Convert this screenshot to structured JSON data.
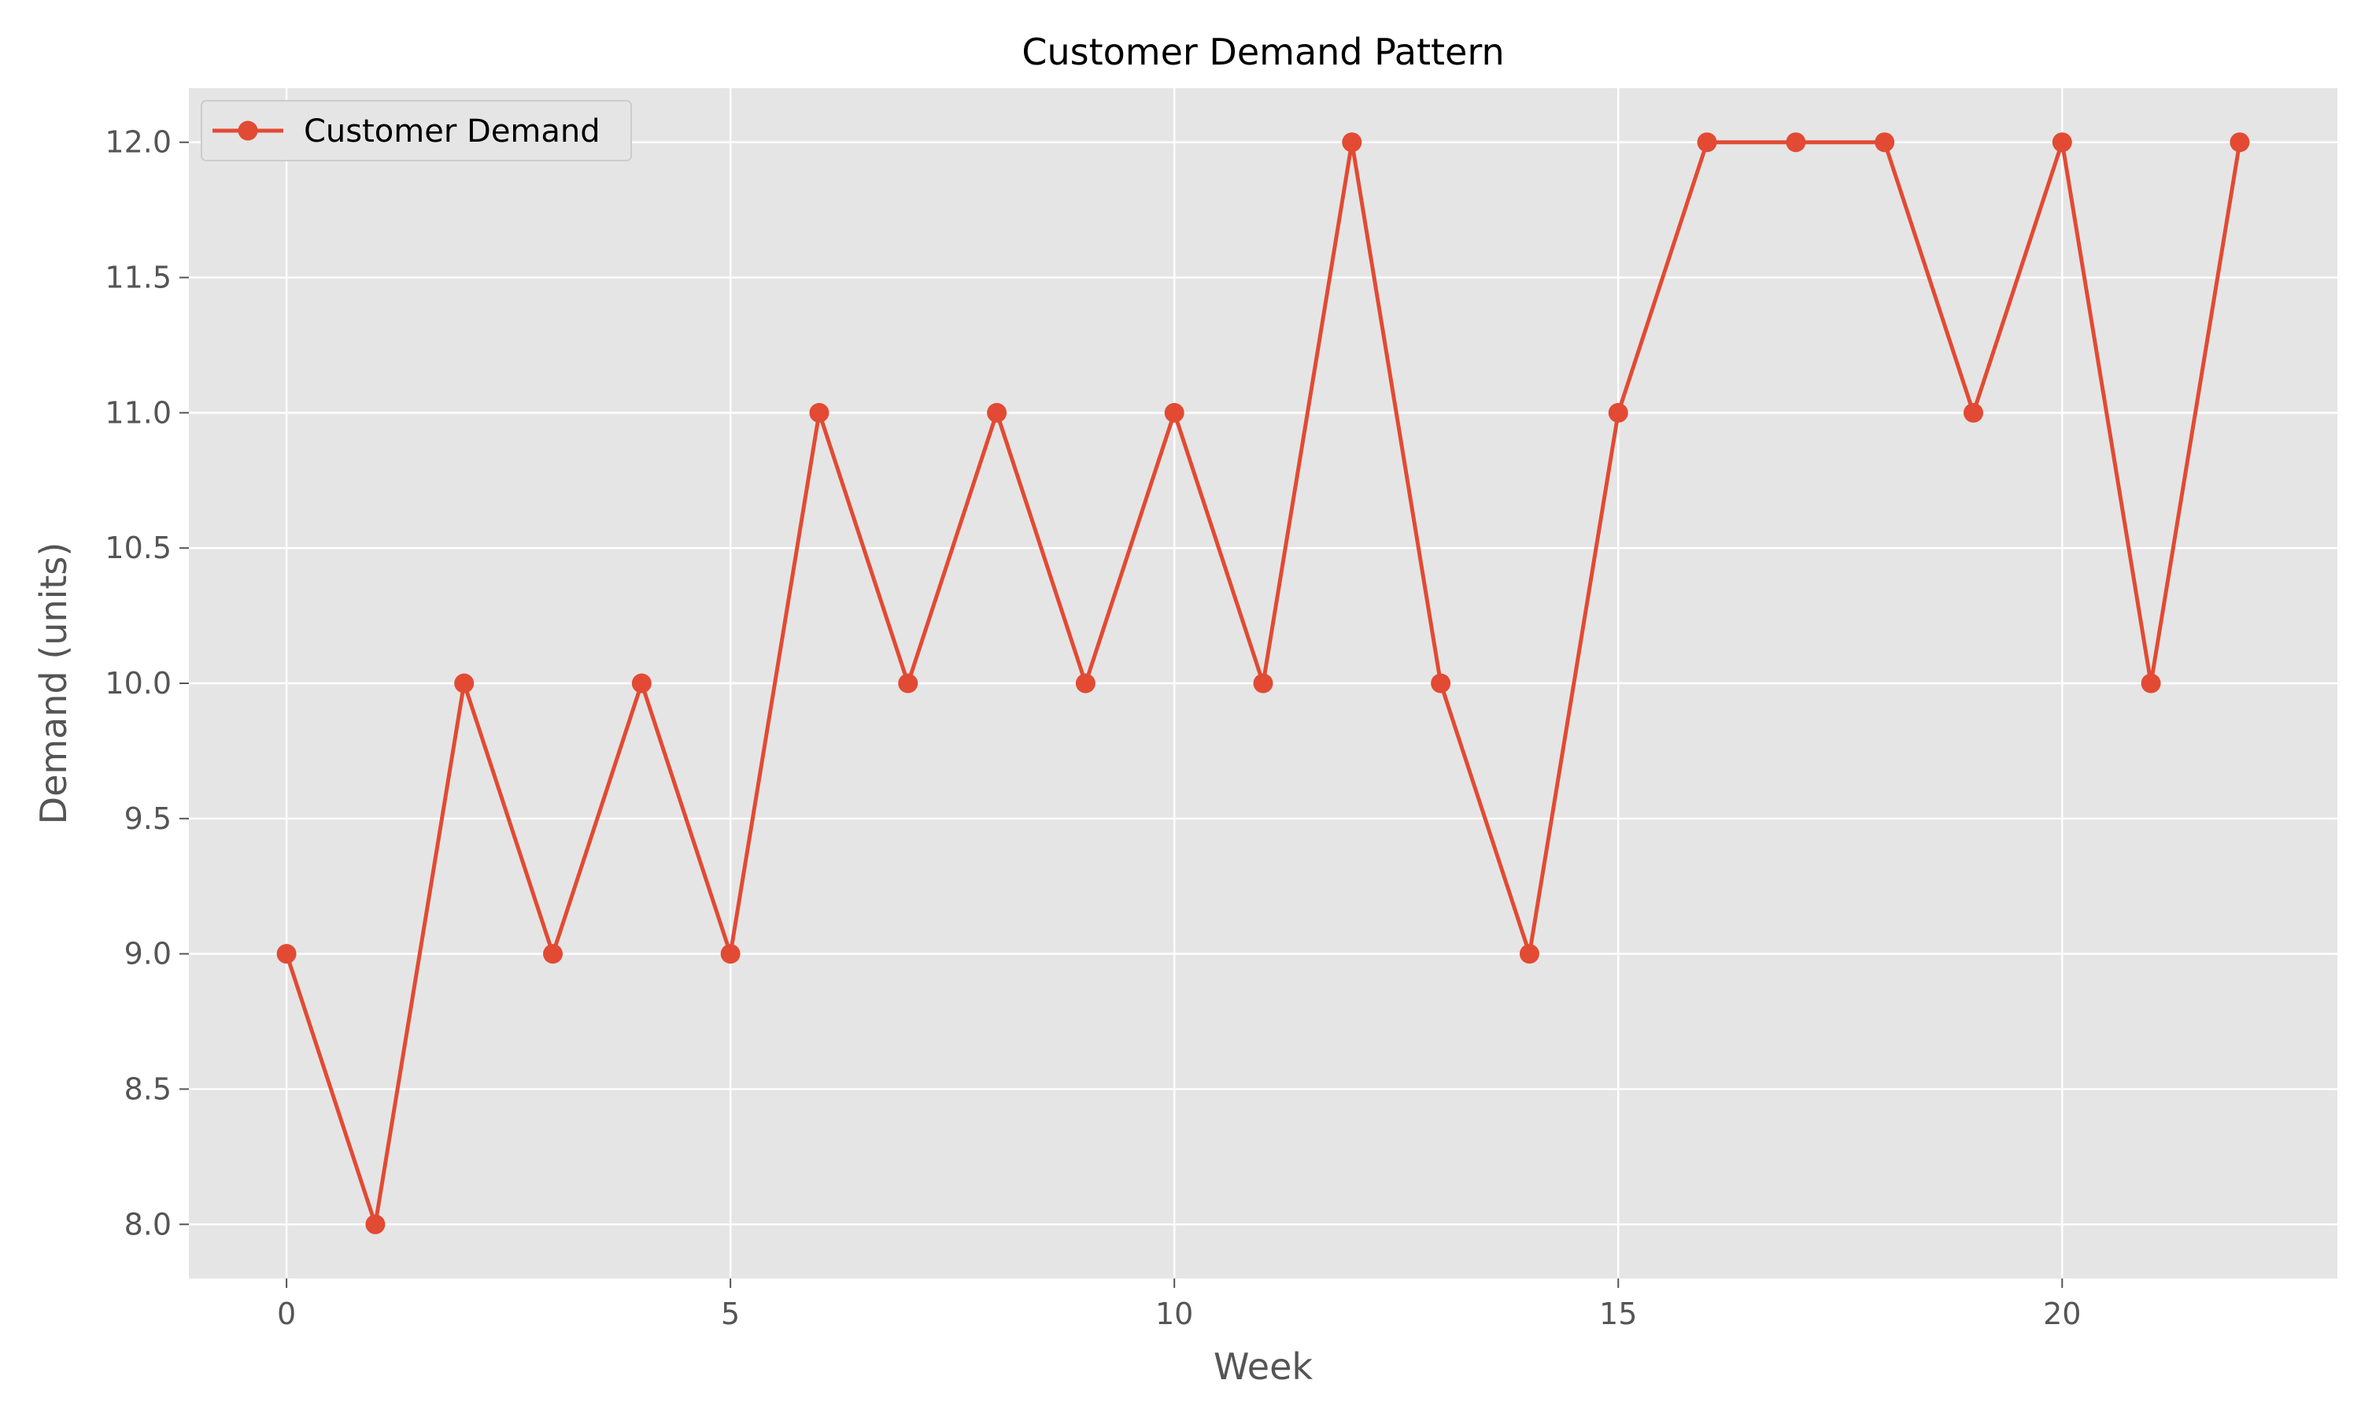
{
  "chart_data": {
    "type": "line",
    "title": "Customer Demand Pattern",
    "xlabel": "Week",
    "ylabel": "Demand (units)",
    "xlim": [
      -1.1,
      23.1
    ],
    "ylim": [
      7.8,
      12.2
    ],
    "xticks": [
      0,
      5,
      10,
      15,
      20
    ],
    "xtick_labels": [
      "0",
      "5",
      "10",
      "15",
      "20"
    ],
    "yticks": [
      8.0,
      8.5,
      9.0,
      9.5,
      10.0,
      10.5,
      11.0,
      11.5,
      12.0
    ],
    "ytick_labels": [
      "8.0",
      "8.5",
      "9.0",
      "9.5",
      "10.0",
      "10.5",
      "11.0",
      "11.5",
      "12.0"
    ],
    "grid": true,
    "legend_position": "top-left",
    "x": [
      0,
      1,
      2,
      3,
      4,
      5,
      6,
      7,
      8,
      9,
      10,
      11,
      12,
      13,
      14,
      15,
      16,
      17,
      18,
      19,
      20,
      21,
      22
    ],
    "series": [
      {
        "name": "Customer Demand",
        "color": "#E24A33",
        "marker": "circle",
        "values": [
          9,
          8,
          10,
          9,
          10,
          9,
          11,
          10,
          11,
          10,
          11,
          10,
          12,
          10,
          9,
          11,
          12,
          12,
          12,
          11,
          12,
          10,
          12
        ]
      }
    ],
    "colors": {
      "plot_background": "#E5E5E5",
      "grid": "#FFFFFF",
      "tick": "#555555"
    }
  }
}
